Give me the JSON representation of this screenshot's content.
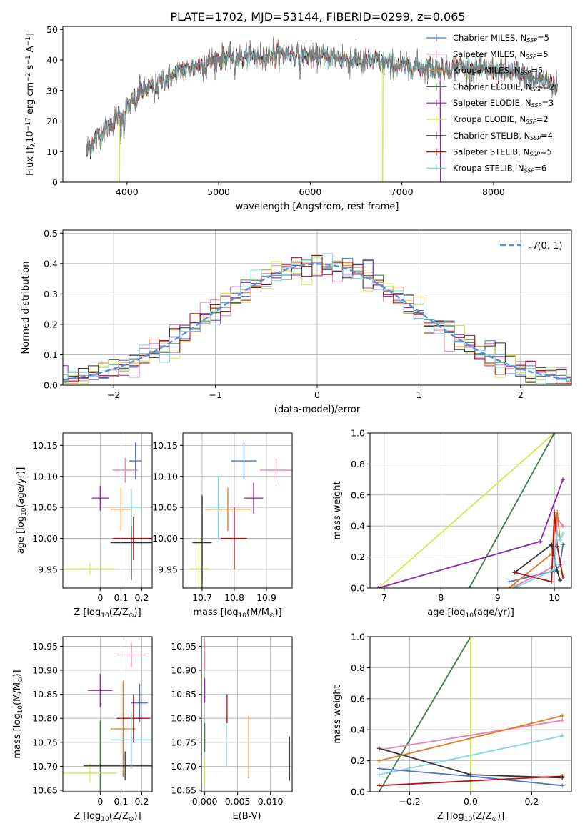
{
  "figure_title": "PLATE=1702, MJD=53144, FIBERID=0299, z=0.065",
  "colors": {
    "Chabrier MILES": "#4a74d4",
    "Salpeter MILES": "#e87fb6",
    "Kroupa MILES": "#e07b20",
    "Chabrier ELODIE": "#3d7a48",
    "Salpeter ELODIE": "#8e24b0",
    "Kroupa ELODIE": "#d4e84a",
    "Chabrier STELIB": "#333333",
    "Salpeter STELIB": "#b01010",
    "Kroupa STELIB": "#7dd8df",
    "gauss": "#5b8fd8",
    "data": "#7a7a7a"
  },
  "chart_data": [
    {
      "id": "spectrum",
      "type": "line",
      "title": "PLATE=1702, MJD=53144, FIBERID=0299, z=0.065",
      "xlabel": "wavelength [Angstrom, rest frame]",
      "ylabel_parts": [
        "Flux [f",
        "λ",
        "10",
        "−17",
        " erg cm",
        "−2",
        " s",
        "−1",
        " A",
        "−1",
        "]"
      ],
      "xlim": [
        3300,
        8850
      ],
      "ylim": [
        0,
        51
      ],
      "xticks": [
        4000,
        5000,
        6000,
        7000,
        8000
      ],
      "yticks": [
        0,
        10,
        20,
        30,
        40,
        50
      ],
      "grid": false,
      "legend_position": "top-right",
      "legend": [
        {
          "name": "Chabrier MILES",
          "n": "5"
        },
        {
          "name": "Salpeter MILES",
          "n": "5"
        },
        {
          "name": "Kroupa MILES",
          "n": "5"
        },
        {
          "name": "Chabrier ELODIE",
          "n": "2"
        },
        {
          "name": "Salpeter ELODIE",
          "n": "3"
        },
        {
          "name": "Kroupa ELODIE",
          "n": "2"
        },
        {
          "name": "Chabrier STELIB",
          "n": "4"
        },
        {
          "name": "Salpeter STELIB",
          "n": "5"
        },
        {
          "name": "Kroupa STELIB",
          "n": "6"
        }
      ],
      "continuum": [
        [
          3550,
          10
        ],
        [
          3650,
          14
        ],
        [
          3750,
          17
        ],
        [
          3850,
          20
        ],
        [
          3950,
          23
        ],
        [
          4050,
          26
        ],
        [
          4150,
          30
        ],
        [
          4250,
          31
        ],
        [
          4350,
          33
        ],
        [
          4450,
          34
        ],
        [
          4550,
          36
        ],
        [
          4650,
          37
        ],
        [
          4750,
          38
        ],
        [
          4850,
          39
        ],
        [
          4950,
          40
        ],
        [
          5050,
          41
        ],
        [
          5200,
          41
        ],
        [
          5400,
          41
        ],
        [
          5600,
          42
        ],
        [
          5800,
          42
        ],
        [
          6000,
          41
        ],
        [
          6200,
          41
        ],
        [
          6400,
          40
        ],
        [
          6600,
          40
        ],
        [
          6800,
          39
        ],
        [
          7000,
          38
        ],
        [
          7200,
          38
        ],
        [
          7400,
          37
        ],
        [
          7600,
          38
        ],
        [
          7800,
          37
        ],
        [
          8000,
          37
        ],
        [
          8200,
          36
        ],
        [
          8400,
          34
        ],
        [
          8600,
          33
        ],
        [
          8700,
          31
        ]
      ],
      "absorption_lines": [
        [
          3934,
          8
        ],
        [
          3969,
          8
        ],
        [
          4102,
          4
        ],
        [
          4300,
          5
        ],
        [
          4340,
          3
        ],
        [
          4861,
          3
        ],
        [
          5175,
          6
        ],
        [
          5270,
          3
        ],
        [
          5890,
          5
        ],
        [
          6563,
          2
        ]
      ],
      "dropouts": [
        {
          "model": "Kroupa ELODIE",
          "x": [
            3920,
            6790
          ]
        },
        {
          "model": "Salpeter ELODIE",
          "x": [
            7420
          ]
        }
      ]
    },
    {
      "id": "residuals",
      "type": "histogram",
      "xlabel": "(data-model)/error",
      "ylabel": "Normed distribution",
      "xlim": [
        -2.5,
        2.5
      ],
      "ylim": [
        0,
        0.51
      ],
      "xticks": [
        -2,
        -1,
        0,
        1,
        2
      ],
      "yticks": [
        0.0,
        0.1,
        0.2,
        0.3,
        0.4,
        0.5
      ],
      "grid": true,
      "legend_position": "top-right",
      "gauss_label_parts": [
        "𝒩",
        "(0, 1)"
      ],
      "bin_width": 0.1
    },
    {
      "id": "age-Z",
      "type": "scatter",
      "xlabel_parts": [
        "Z [log",
        "10",
        "(Z/Z",
        "⊙",
        ")]"
      ],
      "ylabel_parts": [
        "age  [log",
        "10",
        "(age/yr)]"
      ],
      "xlim": [
        -0.18,
        0.25
      ],
      "ylim": [
        9.92,
        10.17
      ],
      "xticks": [
        0.0,
        0.1,
        0.2
      ],
      "yticks": [
        9.95,
        10.0,
        10.05,
        10.1,
        10.15
      ],
      "grid": true,
      "points": [
        {
          "model": "Chabrier MILES",
          "x": 0.17,
          "y": 10.125,
          "xe": 0.03,
          "ye": 0.03
        },
        {
          "model": "Salpeter MILES",
          "x": 0.12,
          "y": 10.11,
          "xe": 0.06,
          "ye": 0.02
        },
        {
          "model": "Kroupa MILES",
          "x": 0.1,
          "y": 10.047,
          "xe": 0.05,
          "ye": 0.035
        },
        {
          "model": "Chabrier ELODIE",
          "x": 0.0,
          "y": 10.0,
          "xe": 0.0,
          "ye": 0.0
        },
        {
          "model": "Salpeter ELODIE",
          "x": 0.0,
          "y": 10.065,
          "xe": 0.04,
          "ye": 0.02
        },
        {
          "model": "Kroupa ELODIE",
          "x": -0.05,
          "y": 9.951,
          "xe": 0.12,
          "ye": 0.01
        },
        {
          "model": "Chabrier STELIB",
          "x": 0.15,
          "y": 9.993,
          "xe": 0.1,
          "ye": 0.06
        },
        {
          "model": "Salpeter STELIB",
          "x": 0.16,
          "y": 10.0,
          "xe": 0.1,
          "ye": 0.035
        },
        {
          "model": "Kroupa STELIB",
          "x": 0.15,
          "y": 10.05,
          "xe": 0.05,
          "ye": 0.03
        }
      ]
    },
    {
      "id": "age-mass",
      "type": "scatter",
      "xlabel_parts": [
        "mass [log",
        "10",
        "(M/M",
        "⊙",
        ")]"
      ],
      "xlim": [
        10.64,
        10.98
      ],
      "ylim": [
        9.92,
        10.17
      ],
      "xticks": [
        10.7,
        10.8,
        10.9
      ],
      "yticks": [
        9.95,
        10.0,
        10.05,
        10.1,
        10.15
      ],
      "grid": true,
      "points": [
        {
          "model": "Chabrier MILES",
          "x": 10.83,
          "y": 10.125,
          "xe": 0.04,
          "ye": 0.03
        },
        {
          "model": "Salpeter MILES",
          "x": 10.93,
          "y": 10.11,
          "xe": 0.05,
          "ye": 0.02
        },
        {
          "model": "Kroupa MILES",
          "x": 10.78,
          "y": 10.047,
          "xe": 0.07,
          "ye": 0.035
        },
        {
          "model": "Chabrier ELODIE",
          "x": 10.7,
          "y": 10.0,
          "xe": 0.0,
          "ye": 0.07
        },
        {
          "model": "Salpeter ELODIE",
          "x": 10.86,
          "y": 10.065,
          "xe": 0.03,
          "ye": 0.025
        },
        {
          "model": "Kroupa ELODIE",
          "x": 10.69,
          "y": 9.951,
          "xe": 0.03,
          "ye": 0.05
        },
        {
          "model": "Chabrier STELIB",
          "x": 10.7,
          "y": 9.993,
          "xe": 0.03,
          "ye": 0.075
        },
        {
          "model": "Salpeter STELIB",
          "x": 10.8,
          "y": 10.0,
          "xe": 0.04,
          "ye": 0.05
        },
        {
          "model": "Kroupa STELIB",
          "x": 10.75,
          "y": 10.05,
          "xe": 0.02,
          "ye": 0.05
        }
      ]
    },
    {
      "id": "mw-age",
      "type": "line",
      "xlabel_parts": [
        "age  [log",
        "10",
        "(age/yr)]"
      ],
      "ylabel": "mass weight",
      "xlim": [
        6.75,
        10.3
      ],
      "ylim": [
        0,
        1.0
      ],
      "xticks": [
        7,
        8,
        9,
        10
      ],
      "yticks": [
        0.0,
        0.2,
        0.4,
        0.6,
        0.8,
        1.0
      ],
      "grid": true,
      "series": [
        {
          "model": "Kroupa ELODIE",
          "x": [
            6.9,
            10.0
          ],
          "y": [
            0.0,
            1.0
          ]
        },
        {
          "model": "Chabrier ELODIE",
          "x": [
            8.5,
            10.0
          ],
          "y": [
            0.0,
            1.0
          ]
        },
        {
          "model": "Salpeter ELODIE",
          "x": [
            6.9,
            9.75,
            10.15
          ],
          "y": [
            0.0,
            0.3,
            0.7
          ]
        },
        {
          "model": "Chabrier MILES",
          "x": [
            9.2,
            10.0,
            10.1,
            10.15
          ],
          "y": [
            0.04,
            0.11,
            0.15,
            0.28
          ]
        },
        {
          "model": "Salpeter MILES",
          "x": [
            9.3,
            10.0,
            10.05,
            10.15
          ],
          "y": [
            0.01,
            0.14,
            0.45,
            0.4
          ]
        },
        {
          "model": "Kroupa MILES",
          "x": [
            9.2,
            9.95,
            10.05,
            10.1
          ],
          "y": [
            0.0,
            0.22,
            0.49,
            0.31
          ]
        },
        {
          "model": "Chabrier STELIB",
          "x": [
            9.3,
            9.95,
            10.05,
            10.1
          ],
          "y": [
            0.1,
            0.28,
            0.11,
            0.05
          ]
        },
        {
          "model": "Salpeter STELIB",
          "x": [
            9.3,
            9.95,
            10.0,
            10.05,
            10.15
          ],
          "y": [
            0.1,
            0.04,
            0.49,
            0.27,
            0.07
          ]
        },
        {
          "model": "Kroupa STELIB",
          "x": [
            9.3,
            10.0,
            10.05,
            10.1,
            10.15
          ],
          "y": [
            0.0,
            0.12,
            0.36,
            0.31,
            0.35
          ]
        }
      ]
    },
    {
      "id": "mass-Z",
      "type": "scatter",
      "xlabel_parts": [
        "Z [log",
        "10",
        "(Z/Z",
        "⊙",
        ")]"
      ],
      "ylabel_parts": [
        "mass [log",
        "10",
        "(M/M",
        "⊙",
        ")]"
      ],
      "xlim": [
        -0.18,
        0.25
      ],
      "ylim": [
        10.647,
        10.97
      ],
      "xticks": [
        0.0,
        0.1,
        0.2
      ],
      "yticks": [
        10.65,
        10.7,
        10.75,
        10.8,
        10.85,
        10.9,
        10.95
      ],
      "grid": true,
      "points": [
        {
          "model": "Chabrier MILES",
          "x": 0.19,
          "y": 10.832,
          "xe": 0.04,
          "ye": 0.04
        },
        {
          "model": "Salpeter MILES",
          "x": 0.15,
          "y": 10.932,
          "xe": 0.07,
          "ye": 0.025
        },
        {
          "model": "Kroupa MILES",
          "x": 0.11,
          "y": 10.778,
          "xe": 0.06,
          "ye": 0.1
        },
        {
          "model": "Chabrier ELODIE",
          "x": 0.0,
          "y": 10.7,
          "xe": 0.0,
          "ye": 0.095
        },
        {
          "model": "Salpeter ELODIE",
          "x": 0.0,
          "y": 10.858,
          "xe": 0.06,
          "ye": 0.035
        },
        {
          "model": "Kroupa ELODIE",
          "x": -0.05,
          "y": 10.686,
          "xe": 0.13,
          "ye": 0.02
        },
        {
          "model": "Chabrier STELIB",
          "x": 0.12,
          "y": 10.701,
          "xe": 0.2,
          "ye": 0.03
        },
        {
          "model": "Salpeter STELIB",
          "x": 0.16,
          "y": 10.8,
          "xe": 0.08,
          "ye": 0.05
        },
        {
          "model": "Kroupa STELIB",
          "x": 0.15,
          "y": 10.755,
          "xe": 0.1,
          "ye": 0.06
        }
      ]
    },
    {
      "id": "mass-ebv",
      "type": "scatter",
      "xlabel": "E(B-V)",
      "xlim": [
        -0.0005,
        0.0133
      ],
      "ylim": [
        10.647,
        10.97
      ],
      "xticks": [
        0.0,
        0.005,
        0.01
      ],
      "xtick_labels": [
        "0.000",
        "0.005",
        "0.010"
      ],
      "yticks": [
        10.65,
        10.7,
        10.75,
        10.8,
        10.85,
        10.9,
        10.95
      ],
      "grid": true,
      "points": [
        {
          "model": "Salpeter MILES",
          "x": 0.0,
          "y": 10.93,
          "xe": 0.0,
          "ye": 0.03
        },
        {
          "model": "Salpeter ELODIE",
          "x": 0.0,
          "y": 10.858,
          "xe": 0.0,
          "ye": 0.025
        },
        {
          "model": "Chabrier ELODIE",
          "x": 0.0,
          "y": 10.76,
          "xe": 0.0,
          "ye": 0.03
        },
        {
          "model": "Kroupa ELODIE",
          "x": 0.0,
          "y": 10.69,
          "xe": 0.0,
          "ye": 0.03
        },
        {
          "model": "Kroupa STELIB",
          "x": 0.0033,
          "y": 10.75,
          "xe": 0.0,
          "ye": 0.05
        },
        {
          "model": "Salpeter STELIB",
          "x": 0.0034,
          "y": 10.82,
          "xe": 0.0,
          "ye": 0.03
        },
        {
          "model": "Kroupa MILES",
          "x": 0.0067,
          "y": 10.74,
          "xe": 0.0,
          "ye": 0.065
        },
        {
          "model": "Chabrier STELIB",
          "x": 0.0129,
          "y": 10.716,
          "xe": 0.0,
          "ye": 0.046
        }
      ]
    },
    {
      "id": "mw-Z",
      "type": "line",
      "xlabel_parts": [
        "Z [log",
        "10",
        "(Z/Z",
        "⊙",
        ")]"
      ],
      "ylabel": "mass weight",
      "xlim": [
        -0.33,
        0.33
      ],
      "ylim": [
        0,
        1.0
      ],
      "xticks": [
        -0.2,
        0.0,
        0.2
      ],
      "xtick_labels": [
        "−0.2",
        "0.0",
        "0.2"
      ],
      "yticks": [
        0.0,
        0.2,
        0.4,
        0.6,
        0.8,
        1.0
      ],
      "grid": true,
      "series": [
        {
          "model": "Chabrier ELODIE",
          "x": [
            -0.3,
            0.0
          ],
          "y": [
            0.0,
            1.0
          ]
        },
        {
          "model": "Kroupa ELODIE",
          "x": [
            0.0,
            0.0
          ],
          "y": [
            0.0,
            1.0
          ]
        },
        {
          "model": "Salpeter MILES",
          "x": [
            -0.3,
            0.3
          ],
          "y": [
            0.27,
            0.46
          ]
        },
        {
          "model": "Kroupa MILES",
          "x": [
            -0.3,
            0.3
          ],
          "y": [
            0.2,
            0.49
          ]
        },
        {
          "model": "Kroupa STELIB",
          "x": [
            -0.3,
            0.3
          ],
          "y": [
            0.11,
            0.36
          ]
        },
        {
          "model": "Chabrier MILES",
          "x": [
            -0.3,
            0.0,
            0.3
          ],
          "y": [
            0.15,
            0.1,
            0.04
          ]
        },
        {
          "model": "Chabrier STELIB",
          "x": [
            -0.3,
            0.0,
            0.3
          ],
          "y": [
            0.28,
            0.11,
            0.09
          ]
        },
        {
          "model": "Salpeter STELIB",
          "x": [
            -0.3,
            0.3
          ],
          "y": [
            0.04,
            0.1
          ]
        }
      ]
    }
  ]
}
